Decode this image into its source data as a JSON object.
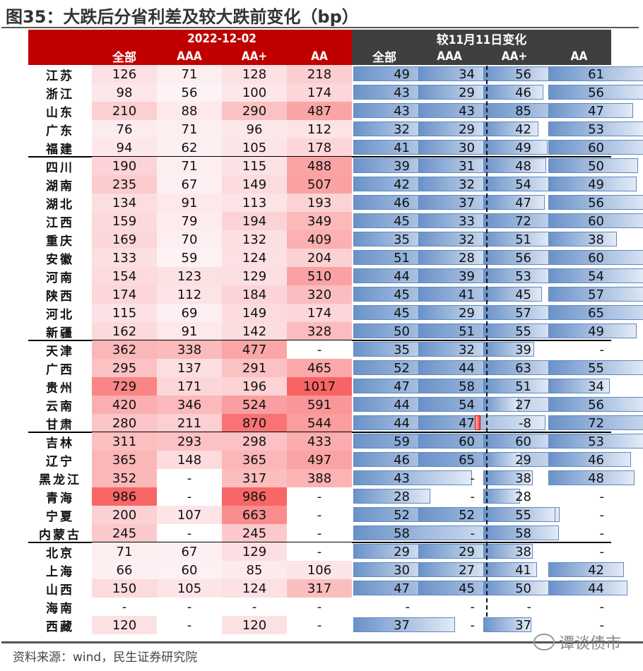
{
  "title": "图35：大跌后分省利差及较大跌前变化（bp）",
  "header": {
    "left_group": "2022-12-02",
    "right_group": "较11月11日变化",
    "columns": [
      "全部",
      "AAA",
      "AA+",
      "AA"
    ]
  },
  "colors": {
    "left_header_bg": "#c00000",
    "right_header_bg": "#3f3f3f",
    "bar_fill": "#6a92c9",
    "negative_bar_fill": "#f04848",
    "heat_high": "#f86464",
    "heat_low": "#fdf6f9"
  },
  "source": "资料来源：wind，民生证券研究院",
  "watermark": "谭谈债市",
  "chart_data": {
    "type": "table",
    "title": "图35：大跌后分省利差及较大跌前变化（bp）",
    "groups": [
      {
        "name": "2022-12-02",
        "columns": [
          "全部",
          "AAA",
          "AA+",
          "AA"
        ],
        "style": "heatmap"
      },
      {
        "name": "较11月11日变化",
        "columns": [
          "全部",
          "AAA",
          "AA+",
          "AA"
        ],
        "style": "data-bars"
      }
    ],
    "row_groups": [
      [
        0,
        4
      ],
      [
        5,
        14
      ],
      [
        15,
        19
      ],
      [
        20,
        25
      ],
      [
        26,
        30
      ]
    ],
    "rows": [
      {
        "province": "江苏",
        "spread": [
          "126",
          "71",
          "128",
          "218"
        ],
        "change": [
          "49",
          "34",
          "56",
          "61"
        ]
      },
      {
        "province": "浙江",
        "spread": [
          "98",
          "56",
          "100",
          "174"
        ],
        "change": [
          "43",
          "29",
          "46",
          "56"
        ]
      },
      {
        "province": "山东",
        "spread": [
          "210",
          "88",
          "290",
          "487"
        ],
        "change": [
          "43",
          "43",
          "85",
          "47"
        ]
      },
      {
        "province": "广东",
        "spread": [
          "76",
          "71",
          "96",
          "112"
        ],
        "change": [
          "32",
          "29",
          "42",
          "53"
        ]
      },
      {
        "province": "福建",
        "spread": [
          "94",
          "62",
          "105",
          "178"
        ],
        "change": [
          "41",
          "30",
          "49",
          "60"
        ]
      },
      {
        "province": "四川",
        "spread": [
          "190",
          "71",
          "115",
          "488"
        ],
        "change": [
          "39",
          "31",
          "48",
          "50"
        ]
      },
      {
        "province": "湖南",
        "spread": [
          "235",
          "67",
          "149",
          "507"
        ],
        "change": [
          "42",
          "32",
          "54",
          "49"
        ]
      },
      {
        "province": "湖北",
        "spread": [
          "134",
          "91",
          "113",
          "193"
        ],
        "change": [
          "46",
          "37",
          "47",
          "56"
        ]
      },
      {
        "province": "江西",
        "spread": [
          "159",
          "79",
          "194",
          "349"
        ],
        "change": [
          "45",
          "33",
          "72",
          "60"
        ]
      },
      {
        "province": "重庆",
        "spread": [
          "169",
          "70",
          "132",
          "409"
        ],
        "change": [
          "35",
          "32",
          "51",
          "38"
        ]
      },
      {
        "province": "安徽",
        "spread": [
          "133",
          "59",
          "124",
          "204"
        ],
        "change": [
          "51",
          "28",
          "56",
          "60"
        ]
      },
      {
        "province": "河南",
        "spread": [
          "154",
          "123",
          "129",
          "510"
        ],
        "change": [
          "44",
          "39",
          "53",
          "54"
        ]
      },
      {
        "province": "陕西",
        "spread": [
          "174",
          "112",
          "184",
          "320"
        ],
        "change": [
          "45",
          "41",
          "45",
          "57"
        ]
      },
      {
        "province": "河北",
        "spread": [
          "115",
          "69",
          "149",
          "174"
        ],
        "change": [
          "45",
          "29",
          "57",
          "65"
        ]
      },
      {
        "province": "新疆",
        "spread": [
          "162",
          "91",
          "142",
          "328"
        ],
        "change": [
          "50",
          "51",
          "55",
          "49"
        ]
      },
      {
        "province": "天津",
        "spread": [
          "362",
          "338",
          "477",
          "-"
        ],
        "change": [
          "35",
          "32",
          "39",
          "-"
        ]
      },
      {
        "province": "广西",
        "spread": [
          "295",
          "137",
          "291",
          "465"
        ],
        "change": [
          "52",
          "44",
          "63",
          "55"
        ]
      },
      {
        "province": "贵州",
        "spread": [
          "729",
          "171",
          "196",
          "1017"
        ],
        "change": [
          "47",
          "58",
          "51",
          "34"
        ]
      },
      {
        "province": "云南",
        "spread": [
          "420",
          "346",
          "524",
          "591"
        ],
        "change": [
          "44",
          "54",
          "27",
          "56"
        ]
      },
      {
        "province": "甘肃",
        "spread": [
          "280",
          "211",
          "870",
          "544"
        ],
        "change": [
          "44",
          "47",
          "-8",
          "72"
        ]
      },
      {
        "province": "吉林",
        "spread": [
          "311",
          "293",
          "298",
          "433"
        ],
        "change": [
          "59",
          "60",
          "60",
          "53"
        ]
      },
      {
        "province": "辽宁",
        "spread": [
          "365",
          "148",
          "365",
          "497"
        ],
        "change": [
          "46",
          "65",
          "29",
          "46"
        ]
      },
      {
        "province": "黑龙江",
        "spread": [
          "352",
          "-",
          "317",
          "388"
        ],
        "change": [
          "43",
          "-",
          "38",
          "48"
        ]
      },
      {
        "province": "青海",
        "spread": [
          "986",
          "-",
          "986",
          "-"
        ],
        "change": [
          "28",
          "-",
          "28",
          "-"
        ]
      },
      {
        "province": "宁夏",
        "spread": [
          "200",
          "107",
          "663",
          "-"
        ],
        "change": [
          "52",
          "52",
          "55",
          "-"
        ]
      },
      {
        "province": "内蒙古",
        "spread": [
          "245",
          "-",
          "245",
          "-"
        ],
        "change": [
          "58",
          "-",
          "58",
          "-"
        ]
      },
      {
        "province": "北京",
        "spread": [
          "71",
          "67",
          "129",
          "-"
        ],
        "change": [
          "29",
          "29",
          "38",
          "-"
        ]
      },
      {
        "province": "上海",
        "spread": [
          "66",
          "60",
          "85",
          "106"
        ],
        "change": [
          "30",
          "27",
          "41",
          "42"
        ]
      },
      {
        "province": "山西",
        "spread": [
          "150",
          "105",
          "124",
          "317"
        ],
        "change": [
          "47",
          "45",
          "50",
          "44"
        ]
      },
      {
        "province": "海南",
        "spread": [
          "-",
          "-",
          "-",
          "-"
        ],
        "change": [
          "-",
          "-",
          "-",
          "-"
        ]
      },
      {
        "province": "西藏",
        "spread": [
          "120",
          "-",
          "120",
          "-"
        ],
        "change": [
          "37",
          "-",
          "37",
          "-"
        ]
      }
    ]
  }
}
